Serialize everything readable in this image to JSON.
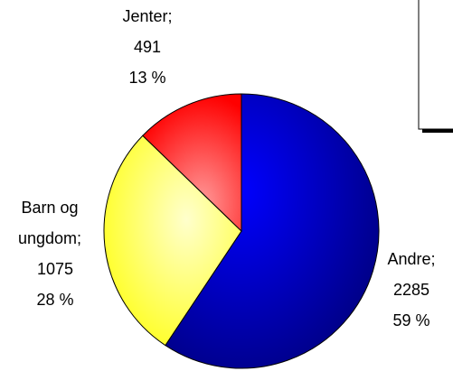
{
  "chart_data": {
    "type": "pie",
    "categories": [
      "Andre;",
      "Barn og ungdom;",
      "Jenter;"
    ],
    "values": [
      2285,
      1075,
      491
    ],
    "percents": [
      59,
      28,
      13
    ],
    "percent_labels": [
      "59 %",
      "28 %",
      "13 %"
    ],
    "colors": [
      "#0000cc",
      "#ffff33",
      "#ff2020"
    ]
  }
}
